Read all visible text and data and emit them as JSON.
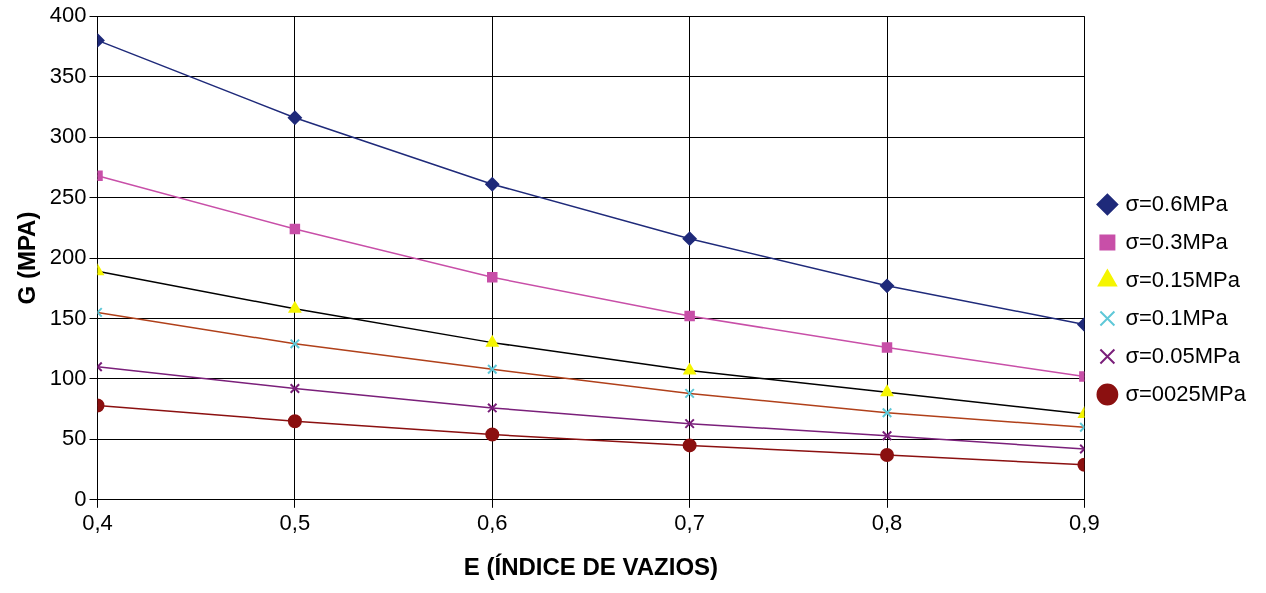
{
  "chart_data": {
    "type": "line",
    "xlabel": "E (ÍNDICE DE VAZIOS)",
    "ylabel": "G (MPA)",
    "x": [
      0.4,
      0.5,
      0.6,
      0.7,
      0.8,
      0.9
    ],
    "series": [
      {
        "name": "σ=0.6MPa",
        "color": "#1f2a7a",
        "marker": "diamond",
        "values": [
          380,
          316,
          261,
          216,
          177,
          145
        ]
      },
      {
        "name": "σ=0.3MPa",
        "color": "#c84fa8",
        "marker": "square",
        "values": [
          268,
          224,
          184,
          152,
          126,
          102
        ]
      },
      {
        "name": "σ=0.15MPa",
        "color": "#000000",
        "colors": [
          "#f5f500",
          "#f5f500",
          "#f5f500",
          "#f5f500",
          "#f5f500",
          "#f5f500"
        ],
        "marker": "triangle",
        "values": [
          189,
          158,
          130,
          107,
          89,
          71
        ]
      },
      {
        "name": "σ=0.1MPa",
        "color": "#b0401a",
        "colors": [
          "#5fc8d8",
          "#5fc8d8",
          "#5fc8d8",
          "#5fc8d8",
          "#5fc8d8",
          "#5fc8d8"
        ],
        "marker": "cross",
        "values": [
          155,
          129,
          108,
          88,
          72,
          60
        ]
      },
      {
        "name": "σ=0.05MPa",
        "color": "#7a1f7a",
        "marker": "cross",
        "values": [
          110,
          92,
          76,
          63,
          53,
          42
        ]
      },
      {
        "name": "σ=0025MPa",
        "color": "#8b1010",
        "marker": "circle",
        "values": [
          78,
          65,
          54,
          45,
          37,
          29
        ]
      }
    ],
    "xlim": [
      0.4,
      0.9
    ],
    "xticks": [
      {
        "value": 0.4,
        "label": "0,4"
      },
      {
        "value": 0.5,
        "label": "0,5"
      },
      {
        "value": 0.6,
        "label": "0,6"
      },
      {
        "value": 0.7,
        "label": "0,7"
      },
      {
        "value": 0.8,
        "label": "0,8"
      },
      {
        "value": 0.9,
        "label": "0,9"
      }
    ],
    "ylim": [
      0,
      400
    ],
    "yticks": [
      0,
      50,
      100,
      150,
      200,
      250,
      300,
      350,
      400
    ],
    "grid": true,
    "legend": "right"
  }
}
